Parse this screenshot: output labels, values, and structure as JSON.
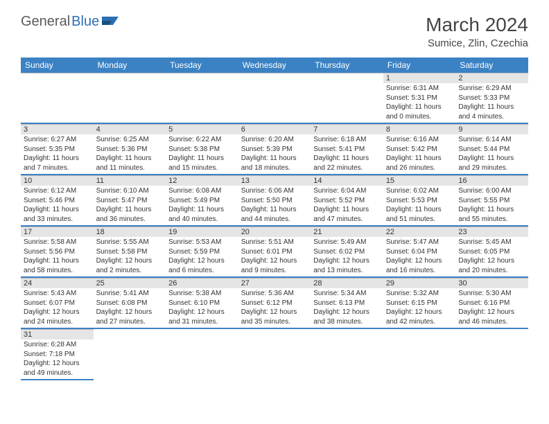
{
  "logo": {
    "part1": "General",
    "part2": "Blue"
  },
  "title": "March 2024",
  "location": "Sumice, Zlin, Czechia",
  "colors": {
    "header_bg": "#3b82c4",
    "header_text": "#ffffff",
    "row_divider": "#3b82c4",
    "daynum_bg": "#e5e5e5",
    "logo_gray": "#5a5a5a",
    "logo_blue": "#2b6fb3"
  },
  "week_headers": [
    "Sunday",
    "Monday",
    "Tuesday",
    "Wednesday",
    "Thursday",
    "Friday",
    "Saturday"
  ],
  "weeks": [
    [
      null,
      null,
      null,
      null,
      null,
      {
        "day": "1",
        "sunrise": "Sunrise: 6:31 AM",
        "sunset": "Sunset: 5:31 PM",
        "daylight": "Daylight: 11 hours and 0 minutes."
      },
      {
        "day": "2",
        "sunrise": "Sunrise: 6:29 AM",
        "sunset": "Sunset: 5:33 PM",
        "daylight": "Daylight: 11 hours and 4 minutes."
      }
    ],
    [
      {
        "day": "3",
        "sunrise": "Sunrise: 6:27 AM",
        "sunset": "Sunset: 5:35 PM",
        "daylight": "Daylight: 11 hours and 7 minutes."
      },
      {
        "day": "4",
        "sunrise": "Sunrise: 6:25 AM",
        "sunset": "Sunset: 5:36 PM",
        "daylight": "Daylight: 11 hours and 11 minutes."
      },
      {
        "day": "5",
        "sunrise": "Sunrise: 6:22 AM",
        "sunset": "Sunset: 5:38 PM",
        "daylight": "Daylight: 11 hours and 15 minutes."
      },
      {
        "day": "6",
        "sunrise": "Sunrise: 6:20 AM",
        "sunset": "Sunset: 5:39 PM",
        "daylight": "Daylight: 11 hours and 18 minutes."
      },
      {
        "day": "7",
        "sunrise": "Sunrise: 6:18 AM",
        "sunset": "Sunset: 5:41 PM",
        "daylight": "Daylight: 11 hours and 22 minutes."
      },
      {
        "day": "8",
        "sunrise": "Sunrise: 6:16 AM",
        "sunset": "Sunset: 5:42 PM",
        "daylight": "Daylight: 11 hours and 26 minutes."
      },
      {
        "day": "9",
        "sunrise": "Sunrise: 6:14 AM",
        "sunset": "Sunset: 5:44 PM",
        "daylight": "Daylight: 11 hours and 29 minutes."
      }
    ],
    [
      {
        "day": "10",
        "sunrise": "Sunrise: 6:12 AM",
        "sunset": "Sunset: 5:46 PM",
        "daylight": "Daylight: 11 hours and 33 minutes."
      },
      {
        "day": "11",
        "sunrise": "Sunrise: 6:10 AM",
        "sunset": "Sunset: 5:47 PM",
        "daylight": "Daylight: 11 hours and 36 minutes."
      },
      {
        "day": "12",
        "sunrise": "Sunrise: 6:08 AM",
        "sunset": "Sunset: 5:49 PM",
        "daylight": "Daylight: 11 hours and 40 minutes."
      },
      {
        "day": "13",
        "sunrise": "Sunrise: 6:06 AM",
        "sunset": "Sunset: 5:50 PM",
        "daylight": "Daylight: 11 hours and 44 minutes."
      },
      {
        "day": "14",
        "sunrise": "Sunrise: 6:04 AM",
        "sunset": "Sunset: 5:52 PM",
        "daylight": "Daylight: 11 hours and 47 minutes."
      },
      {
        "day": "15",
        "sunrise": "Sunrise: 6:02 AM",
        "sunset": "Sunset: 5:53 PM",
        "daylight": "Daylight: 11 hours and 51 minutes."
      },
      {
        "day": "16",
        "sunrise": "Sunrise: 6:00 AM",
        "sunset": "Sunset: 5:55 PM",
        "daylight": "Daylight: 11 hours and 55 minutes."
      }
    ],
    [
      {
        "day": "17",
        "sunrise": "Sunrise: 5:58 AM",
        "sunset": "Sunset: 5:56 PM",
        "daylight": "Daylight: 11 hours and 58 minutes."
      },
      {
        "day": "18",
        "sunrise": "Sunrise: 5:55 AM",
        "sunset": "Sunset: 5:58 PM",
        "daylight": "Daylight: 12 hours and 2 minutes."
      },
      {
        "day": "19",
        "sunrise": "Sunrise: 5:53 AM",
        "sunset": "Sunset: 5:59 PM",
        "daylight": "Daylight: 12 hours and 6 minutes."
      },
      {
        "day": "20",
        "sunrise": "Sunrise: 5:51 AM",
        "sunset": "Sunset: 6:01 PM",
        "daylight": "Daylight: 12 hours and 9 minutes."
      },
      {
        "day": "21",
        "sunrise": "Sunrise: 5:49 AM",
        "sunset": "Sunset: 6:02 PM",
        "daylight": "Daylight: 12 hours and 13 minutes."
      },
      {
        "day": "22",
        "sunrise": "Sunrise: 5:47 AM",
        "sunset": "Sunset: 6:04 PM",
        "daylight": "Daylight: 12 hours and 16 minutes."
      },
      {
        "day": "23",
        "sunrise": "Sunrise: 5:45 AM",
        "sunset": "Sunset: 6:05 PM",
        "daylight": "Daylight: 12 hours and 20 minutes."
      }
    ],
    [
      {
        "day": "24",
        "sunrise": "Sunrise: 5:43 AM",
        "sunset": "Sunset: 6:07 PM",
        "daylight": "Daylight: 12 hours and 24 minutes."
      },
      {
        "day": "25",
        "sunrise": "Sunrise: 5:41 AM",
        "sunset": "Sunset: 6:08 PM",
        "daylight": "Daylight: 12 hours and 27 minutes."
      },
      {
        "day": "26",
        "sunrise": "Sunrise: 5:38 AM",
        "sunset": "Sunset: 6:10 PM",
        "daylight": "Daylight: 12 hours and 31 minutes."
      },
      {
        "day": "27",
        "sunrise": "Sunrise: 5:36 AM",
        "sunset": "Sunset: 6:12 PM",
        "daylight": "Daylight: 12 hours and 35 minutes."
      },
      {
        "day": "28",
        "sunrise": "Sunrise: 5:34 AM",
        "sunset": "Sunset: 6:13 PM",
        "daylight": "Daylight: 12 hours and 38 minutes."
      },
      {
        "day": "29",
        "sunrise": "Sunrise: 5:32 AM",
        "sunset": "Sunset: 6:15 PM",
        "daylight": "Daylight: 12 hours and 42 minutes."
      },
      {
        "day": "30",
        "sunrise": "Sunrise: 5:30 AM",
        "sunset": "Sunset: 6:16 PM",
        "daylight": "Daylight: 12 hours and 46 minutes."
      }
    ],
    [
      {
        "day": "31",
        "sunrise": "Sunrise: 6:28 AM",
        "sunset": "Sunset: 7:18 PM",
        "daylight": "Daylight: 12 hours and 49 minutes."
      },
      null,
      null,
      null,
      null,
      null,
      null
    ]
  ]
}
